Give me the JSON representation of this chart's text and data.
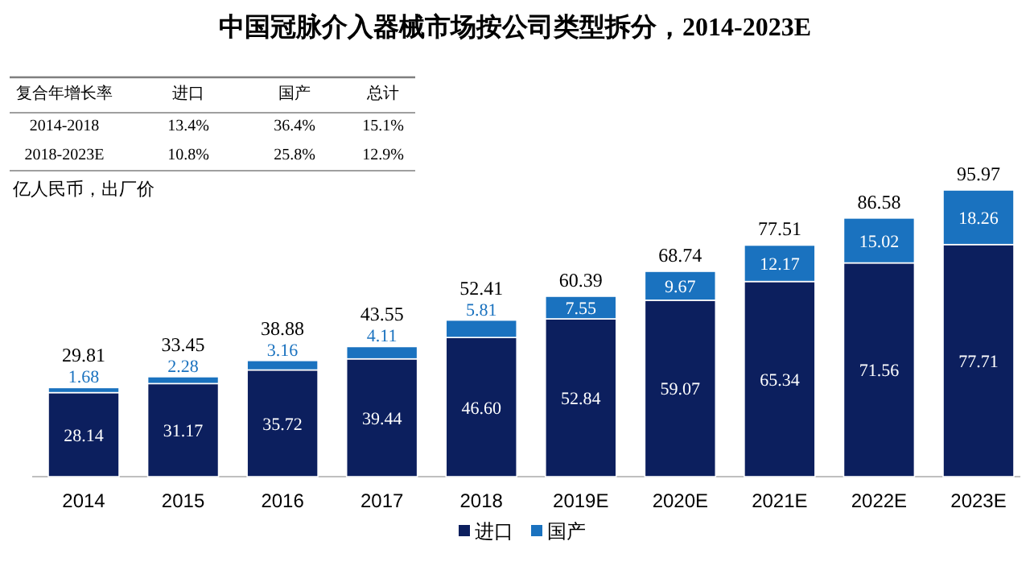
{
  "chart_data": {
    "type": "bar",
    "title": "中国冠脉介入器械市场按公司类型拆分，2014-2023E",
    "categories": [
      "2014",
      "2015",
      "2016",
      "2017",
      "2018",
      "2019E",
      "2020E",
      "2021E",
      "2022E",
      "2023E"
    ],
    "series": [
      {
        "name": "进口",
        "color": "#0c1f5e",
        "values": [
          28.14,
          31.17,
          35.72,
          39.44,
          46.6,
          52.84,
          59.07,
          65.34,
          71.56,
          77.71
        ],
        "value_labels": [
          "28.14",
          "31.17",
          "35.72",
          "39.44",
          "46.60",
          "52.84",
          "59.07",
          "65.34",
          "71.56",
          "77.71"
        ]
      },
      {
        "name": "国产",
        "color": "#1a72bf",
        "values": [
          1.68,
          2.28,
          3.16,
          4.11,
          5.81,
          7.55,
          9.67,
          12.17,
          15.02,
          18.26
        ],
        "value_labels": [
          "1.68",
          "2.28",
          "3.16",
          "4.11",
          "5.81",
          "7.55",
          "9.67",
          "12.17",
          "15.02",
          "18.26"
        ]
      }
    ],
    "stacked": true,
    "totals": [
      "29.81",
      "33.45",
      "38.88",
      "43.55",
      "52.41",
      "60.39",
      "68.74",
      "77.51",
      "86.58",
      "95.97"
    ],
    "legend": "bottom",
    "annotations": [
      "复合年增长率",
      "进口",
      "国产",
      "总计",
      "2014-2018",
      "13.4%",
      "36.4%",
      "15.1%",
      "2018-2023E",
      "10.8%",
      "25.8%",
      "12.9%",
      "亿人民币，出厂价"
    ]
  }
}
